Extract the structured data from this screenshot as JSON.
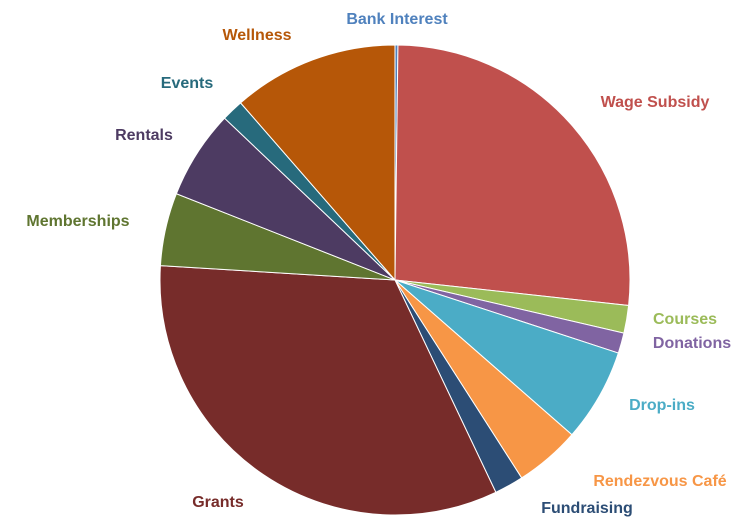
{
  "chart_data": {
    "type": "pie",
    "categories": [
      "Bank Interest",
      "Wage Subsidy",
      "Courses",
      "Donations",
      "Drop-ins",
      "Rendezvous Café",
      "Fundraising",
      "Grants",
      "Memberships",
      "Rentals",
      "Events",
      "Wellness"
    ],
    "values": [
      0.2,
      26.5,
      1.9,
      1.4,
      6.4,
      4.5,
      2,
      33,
      5,
      6.1,
      1.5,
      11.4
    ],
    "colors": [
      "#4f81bd",
      "#c0504d",
      "#9bbb59",
      "#8064a2",
      "#4bacc6",
      "#f79646",
      "#2c4d75",
      "#772c2a",
      "#5f7530",
      "#4d3b62",
      "#276a7c",
      "#b65708"
    ]
  }
}
